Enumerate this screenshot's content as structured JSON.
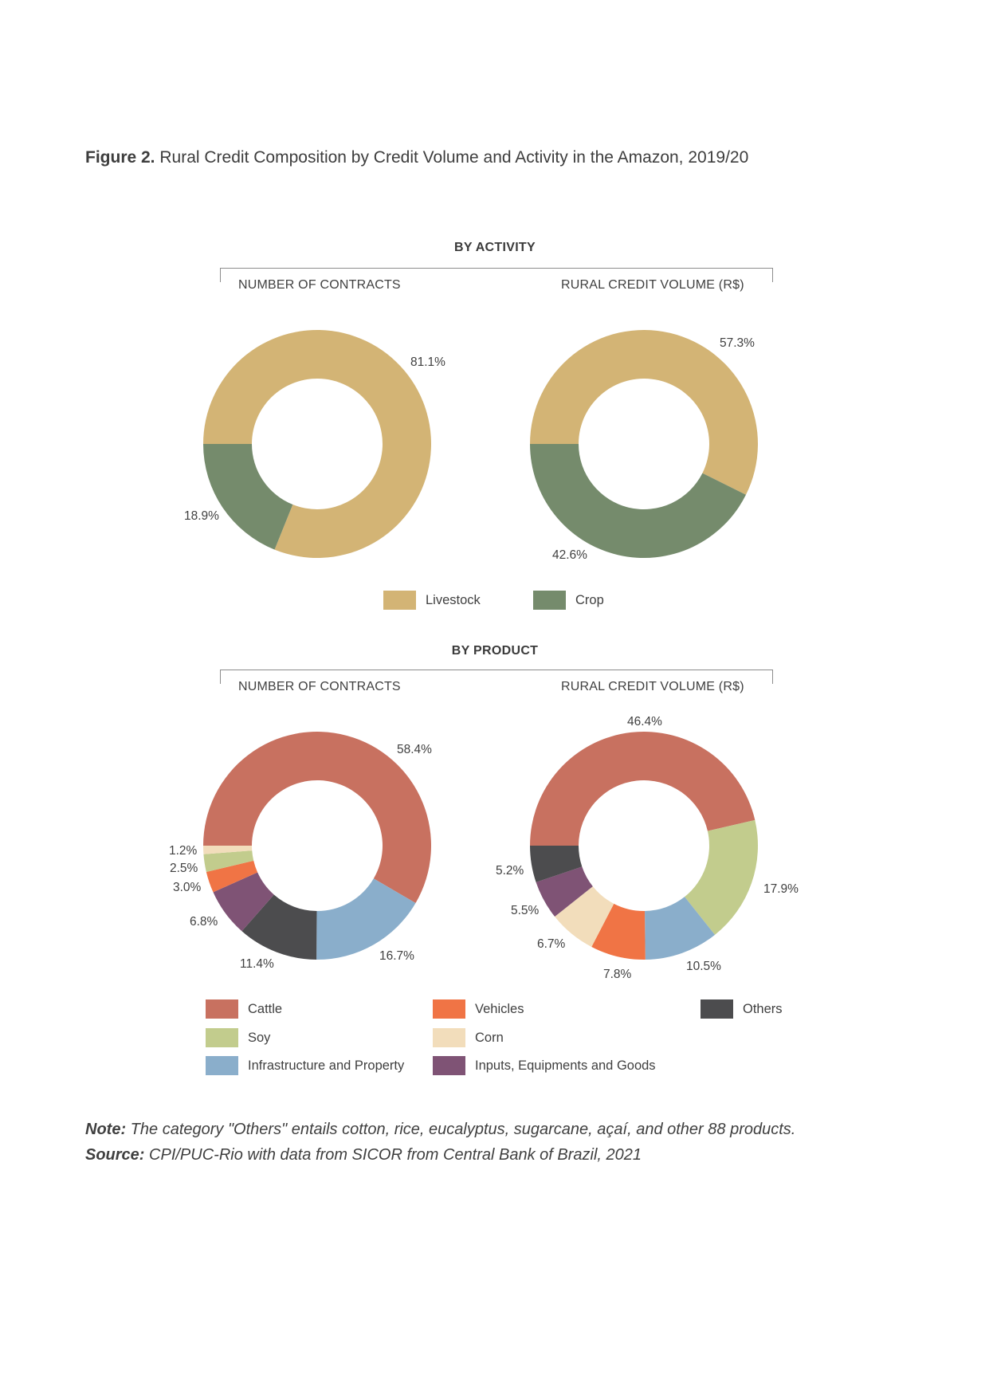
{
  "figure": {
    "label": "Figure 2.",
    "title": "Rural Credit Composition by Credit Volume and Activity in the Amazon, 2019/20"
  },
  "sections": {
    "activity": {
      "title": "BY ACTIVITY",
      "left_label": "NUMBER OF CONTRACTS",
      "right_label": "RURAL CREDIT VOLUME (R$)"
    },
    "product": {
      "title": "BY PRODUCT",
      "left_label": "NUMBER OF CONTRACTS",
      "right_label": "RURAL CREDIT VOLUME (R$)"
    }
  },
  "colors": {
    "livestock": "#D3B475",
    "crop": "#758B6C",
    "cattle": "#C87160",
    "soy": "#C2CC8D",
    "infrastructure": "#8AAECB",
    "vehicles": "#F07445",
    "corn": "#F2DDBB",
    "inputs": "#7F5375",
    "others": "#4C4C4E"
  },
  "chart_data": [
    {
      "type": "pie",
      "group": "BY ACTIVITY",
      "title": "NUMBER OF CONTRACTS",
      "slices": [
        {
          "name": "Livestock",
          "value": 81.1,
          "label": "81.1%"
        },
        {
          "name": "Crop",
          "value": 18.9,
          "label": "18.9%"
        }
      ]
    },
    {
      "type": "pie",
      "group": "BY ACTIVITY",
      "title": "RURAL CREDIT VOLUME (R$)",
      "slices": [
        {
          "name": "Livestock",
          "value": 57.3,
          "label": "57.3%"
        },
        {
          "name": "Crop",
          "value": 42.6,
          "label": "42.6%"
        }
      ]
    },
    {
      "type": "pie",
      "group": "BY PRODUCT",
      "title": "NUMBER OF CONTRACTS",
      "slices": [
        {
          "name": "Cattle",
          "value": 58.4,
          "label": "58.4%"
        },
        {
          "name": "Infrastructure and Property",
          "value": 16.7,
          "label": "16.7%"
        },
        {
          "name": "Others",
          "value": 11.4,
          "label": "11.4%"
        },
        {
          "name": "Inputs, Equipments and Goods",
          "value": 6.8,
          "label": "6.8%"
        },
        {
          "name": "Vehicles",
          "value": 3.0,
          "label": "3.0%"
        },
        {
          "name": "Soy",
          "value": 2.5,
          "label": "2.5%"
        },
        {
          "name": "Corn",
          "value": 1.2,
          "label": "1.2%"
        }
      ]
    },
    {
      "type": "pie",
      "group": "BY PRODUCT",
      "title": "RURAL CREDIT VOLUME (R$)",
      "slices": [
        {
          "name": "Cattle",
          "value": 46.4,
          "label": "46.4%"
        },
        {
          "name": "Soy",
          "value": 17.9,
          "label": "17.9%"
        },
        {
          "name": "Infrastructure and Property",
          "value": 10.5,
          "label": "10.5%"
        },
        {
          "name": "Vehicles",
          "value": 7.8,
          "label": "7.8%"
        },
        {
          "name": "Corn",
          "value": 6.7,
          "label": "6.7%"
        },
        {
          "name": "Inputs, Equipments and Goods",
          "value": 5.5,
          "label": "5.5%"
        },
        {
          "name": "Others",
          "value": 5.2,
          "label": "5.2%"
        }
      ]
    }
  ],
  "legend_activity": [
    {
      "label": "Livestock",
      "color": "#D3B475"
    },
    {
      "label": "Crop",
      "color": "#758B6C"
    }
  ],
  "legend_product": [
    {
      "label": "Cattle",
      "color": "#C87160"
    },
    {
      "label": "Vehicles",
      "color": "#F07445"
    },
    {
      "label": "Others",
      "color": "#4C4C4E"
    },
    {
      "label": "Soy",
      "color": "#C2CC8D"
    },
    {
      "label": "Corn",
      "color": "#F2DDBB"
    },
    {
      "label": "Infrastructure and Property",
      "color": "#8AAECB"
    },
    {
      "label": "Inputs, Equipments and Goods",
      "color": "#7F5375"
    }
  ],
  "note": {
    "note_label": "Note:",
    "note_text": "The category \"Others\" entails cotton, rice, eucalyptus, sugarcane, açaí, and other 88 products.",
    "source_label": "Source:",
    "source_text": "CPI/PUC-Rio with data from SICOR from Central Bank of Brazil, 2021"
  }
}
